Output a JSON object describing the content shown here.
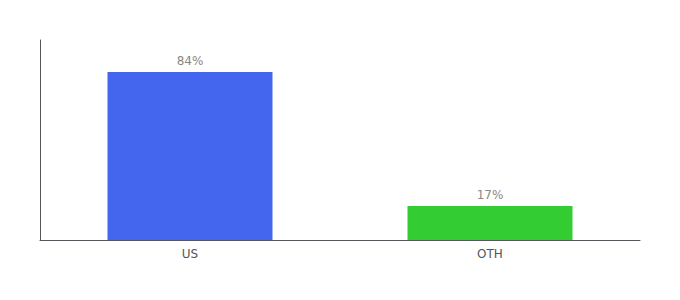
{
  "chart_data": {
    "type": "bar",
    "categories": [
      "US",
      "OTH"
    ],
    "values": [
      84,
      17
    ],
    "value_labels": [
      "84%",
      "17%"
    ],
    "colors": [
      "#4466ee",
      "#33cc33"
    ],
    "ylim": [
      0,
      100
    ],
    "grid": false,
    "data_labels": true,
    "tick_labels": "x"
  }
}
